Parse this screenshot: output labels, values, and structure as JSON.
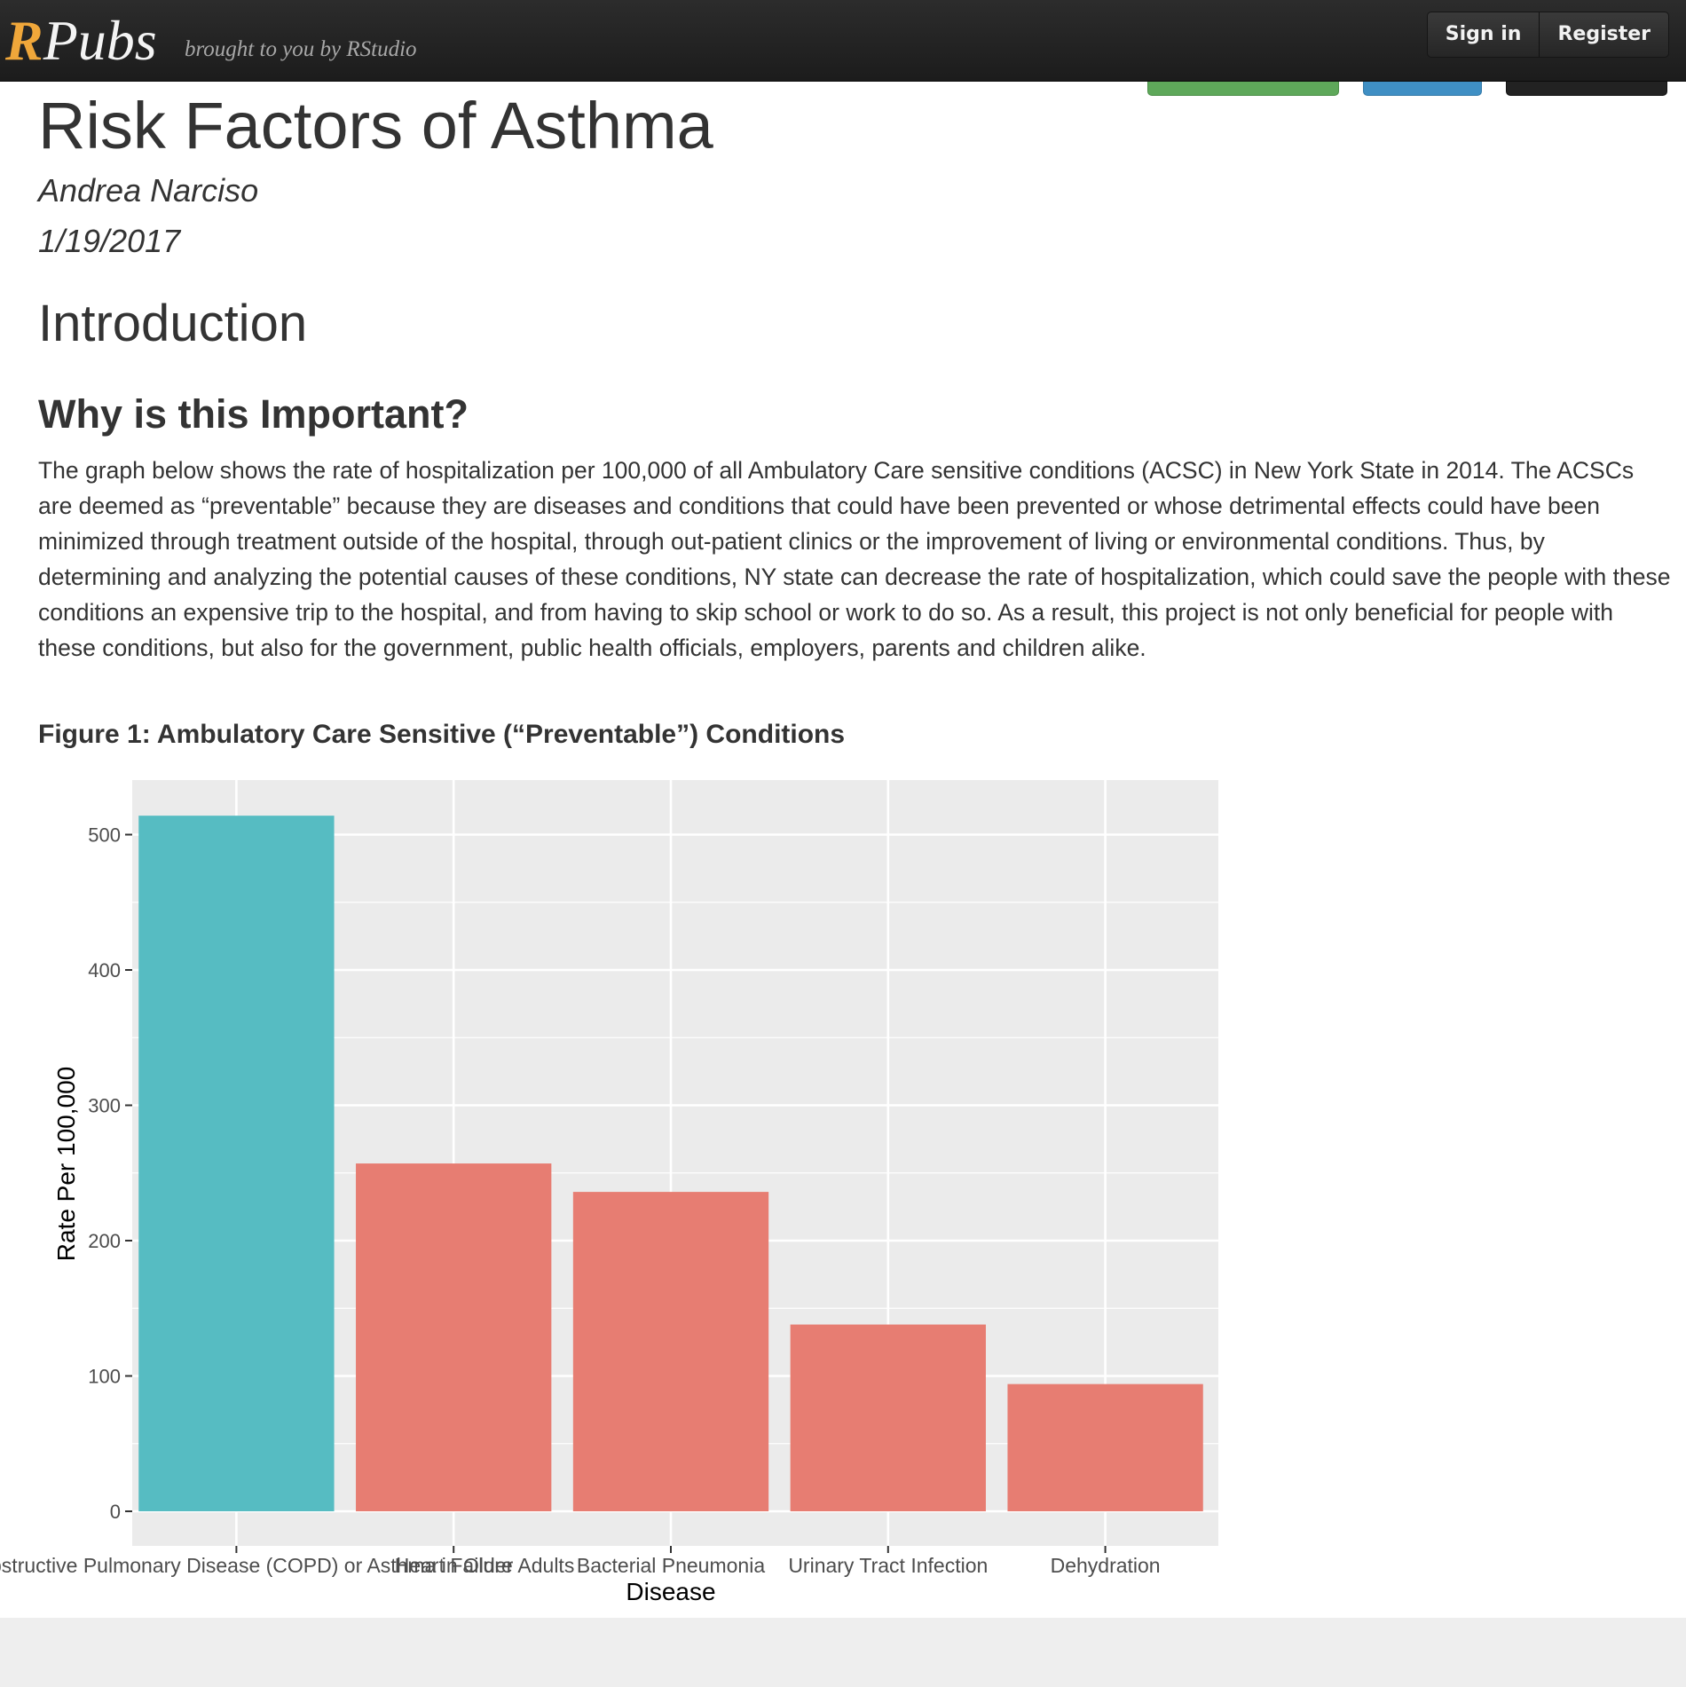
{
  "navbar": {
    "brand_r": "R",
    "brand_rest": "Pubs",
    "tagline": "brought to you by RStudio",
    "sign_in": "Sign in",
    "register": "Register"
  },
  "document": {
    "title": "Risk Factors of Asthma",
    "author": "Andrea Narciso",
    "date": "1/19/2017",
    "section_heading": "Introduction",
    "subsection_heading": "Why is this Important?",
    "paragraph": "The graph below shows the rate of hospitalization per 100,000 of all Ambulatory Care sensitive conditions (ACSC) in New York State in 2014. The ACSCs are deemed as “preventable” because they are diseases and conditions that could have been prevented or whose detrimental effects could have been minimized through treatment outside of the hospital, through out-patient clinics or the improvement of living or environmental conditions. Thus, by determining and analyzing the potential causes of these conditions, NY state can decrease the rate of hospitalization, which could save the people with these conditions an expensive trip to the hospital, and from having to skip school or work to do so. As a result, this project is not only beneficial for people with these conditions, but also for the government, public health officials, employers, parents and children alike.",
    "figure_caption": "Figure 1: Ambulatory Care Sensitive (“Preventable”) Conditions"
  },
  "colors": {
    "highlight_bar": "#56bcc2",
    "other_bar": "#e77d72",
    "panel_bg": "#ebebeb",
    "grid": "#ffffff",
    "brand_accent": "#f0a73a"
  },
  "chart_data": {
    "type": "bar",
    "categories": [
      "Chronic Obstructive Pulmonary Disease (COPD) or Asthma in Older Adults",
      "Heart Failure",
      "Bacterial Pneumonia",
      "Urinary Tract Infection",
      "Dehydration"
    ],
    "values": [
      514,
      257,
      236,
      138,
      94
    ],
    "highlight": [
      true,
      false,
      false,
      false,
      false
    ],
    "xlabel": "Disease",
    "ylabel": "Rate Per 100,000",
    "ylim": [
      0,
      540
    ],
    "yticks": [
      0,
      100,
      200,
      300,
      400,
      500
    ],
    "grid": true
  }
}
